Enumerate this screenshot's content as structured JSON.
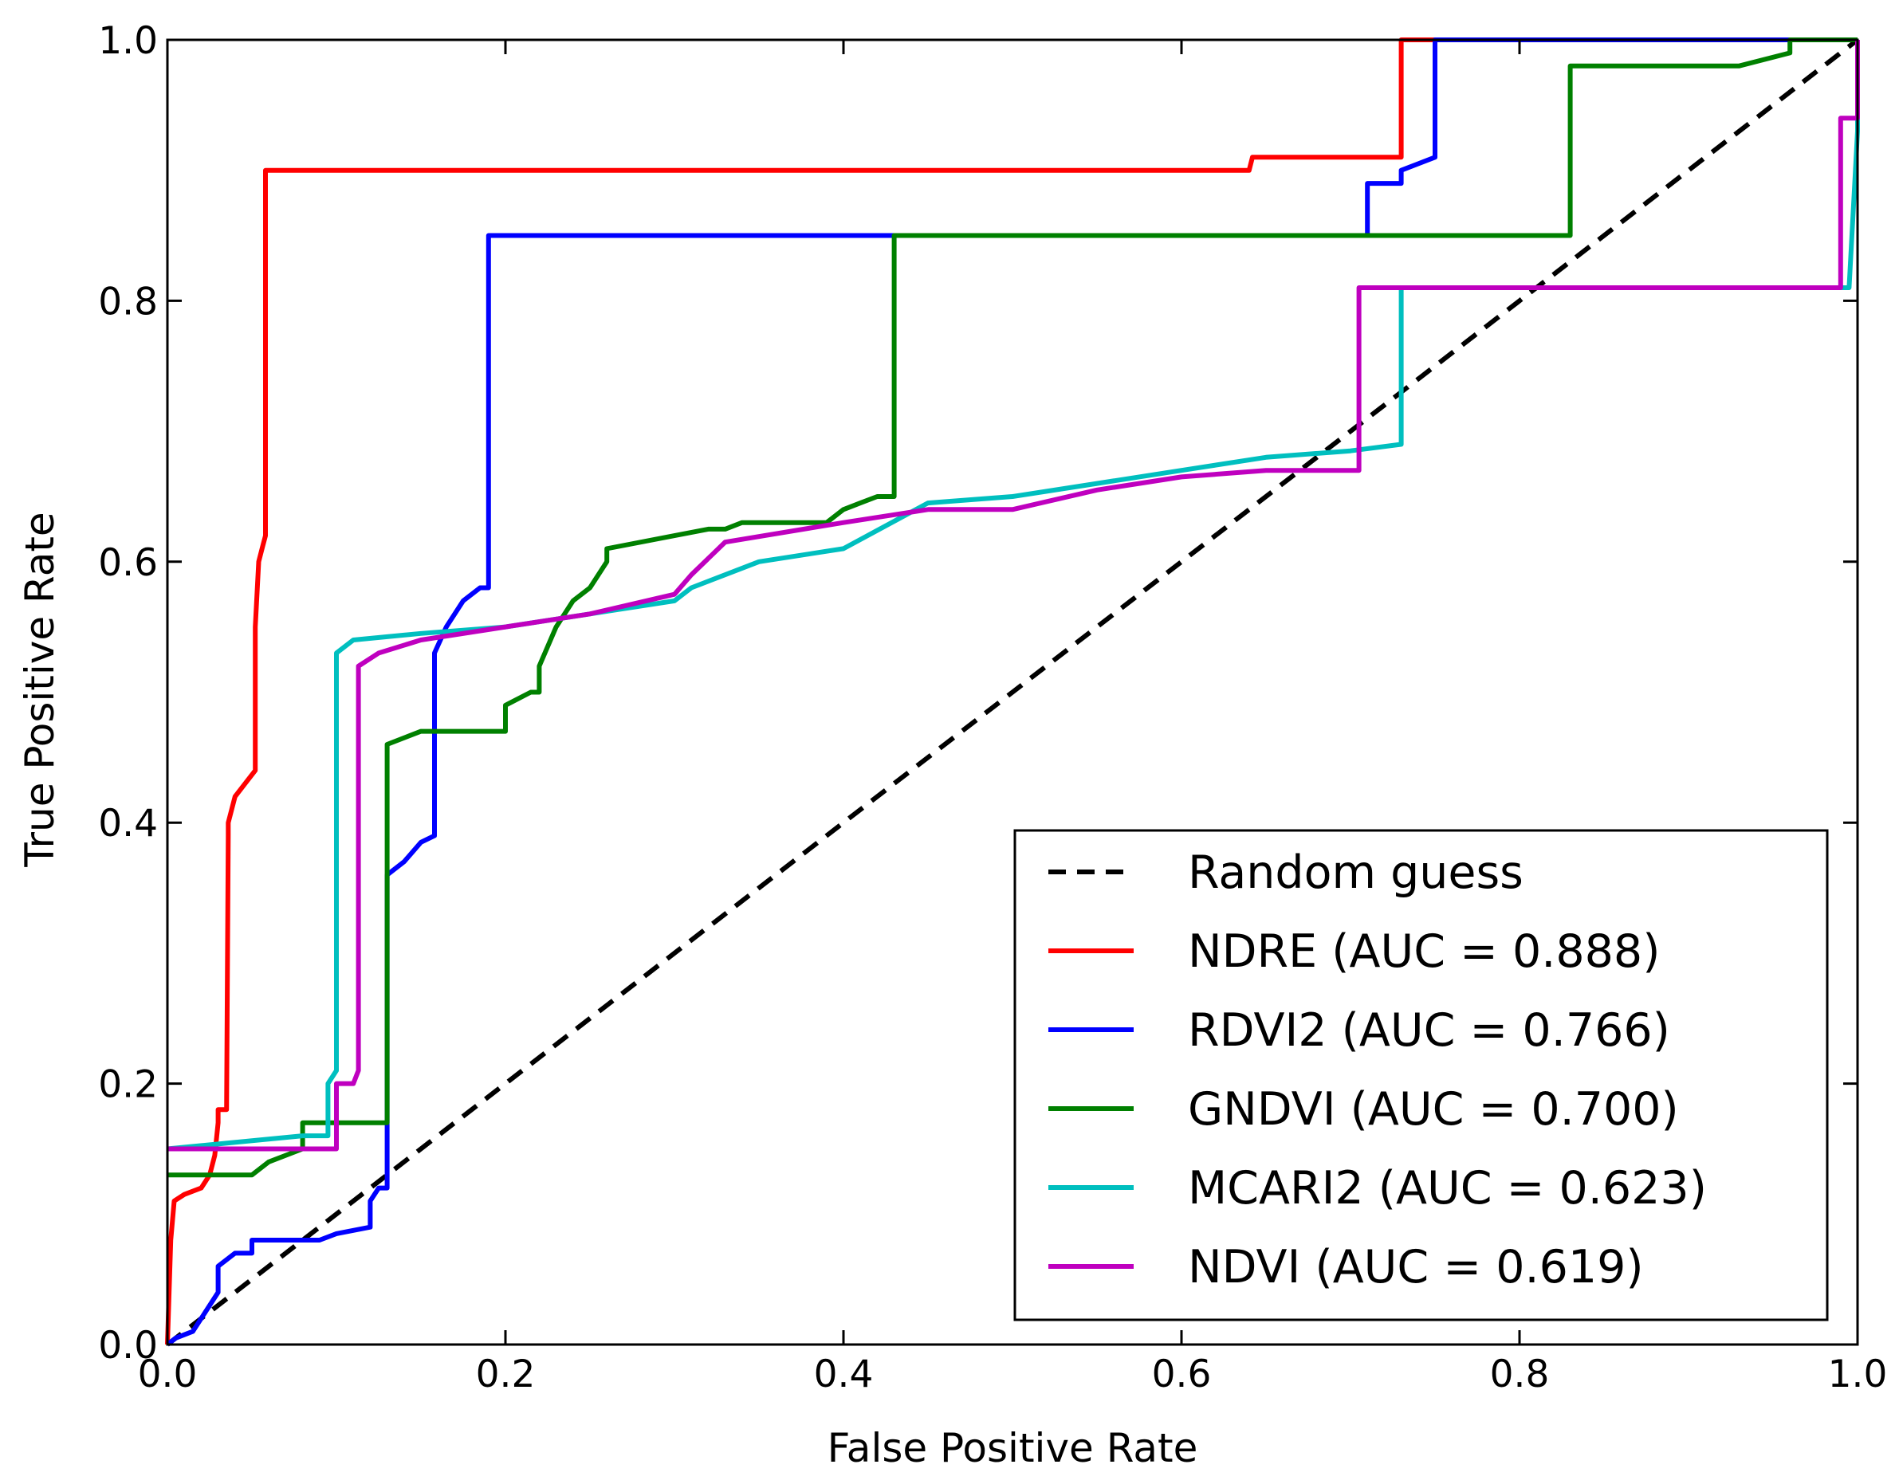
{
  "chart_data": {
    "type": "line",
    "title": "",
    "xlabel": "False Positive Rate",
    "ylabel": "True Positive Rate",
    "xlim": [
      0,
      1
    ],
    "ylim": [
      0,
      1
    ],
    "x_ticks": [
      0.0,
      0.2,
      0.4,
      0.6,
      0.8,
      1.0
    ],
    "y_ticks": [
      0.0,
      0.2,
      0.4,
      0.6,
      0.8,
      1.0
    ],
    "x_tick_labels": [
      "0.0",
      "0.2",
      "0.4",
      "0.6",
      "0.8",
      "1.0"
    ],
    "y_tick_labels": [
      "0.0",
      "0.2",
      "0.4",
      "0.6",
      "0.8",
      "1.0"
    ],
    "grid": false,
    "legend_position": "lower-right",
    "reference_line": {
      "name": "Random guess",
      "color": "#000000",
      "style": "dashed",
      "x": [
        0,
        1
      ],
      "y": [
        0,
        1
      ]
    },
    "series": [
      {
        "name": "NDRE (AUC = 0.888)",
        "color": "#ff0000",
        "x": [
          0,
          0.002,
          0.004,
          0.01,
          0.02,
          0.025,
          0.028,
          0.03,
          0.03,
          0.035,
          0.036,
          0.036,
          0.04,
          0.046,
          0.052,
          0.052,
          0.054,
          0.056,
          0.058,
          0.058,
          0.062,
          0.6,
          0.64,
          0.642,
          0.7,
          0.73,
          0.73,
          0.733,
          0.75,
          1.0
        ],
        "y": [
          0,
          0.08,
          0.11,
          0.115,
          0.12,
          0.13,
          0.145,
          0.17,
          0.18,
          0.18,
          0.39,
          0.4,
          0.42,
          0.43,
          0.44,
          0.55,
          0.6,
          0.61,
          0.62,
          0.9,
          0.9,
          0.9,
          0.9,
          0.91,
          0.91,
          0.91,
          1.0,
          1.0,
          1.0,
          1.0
        ]
      },
      {
        "name": "RDVI2 (AUC = 0.766)",
        "color": "#0000ff",
        "x": [
          0,
          0.005,
          0.015,
          0.02,
          0.025,
          0.03,
          0.03,
          0.04,
          0.05,
          0.05,
          0.06,
          0.09,
          0.1,
          0.12,
          0.12,
          0.125,
          0.13,
          0.13,
          0.14,
          0.15,
          0.158,
          0.158,
          0.165,
          0.175,
          0.185,
          0.19,
          0.19,
          0.71,
          0.71,
          0.73,
          0.73,
          0.75,
          0.75,
          1.0
        ],
        "y": [
          0,
          0.005,
          0.01,
          0.02,
          0.03,
          0.04,
          0.06,
          0.07,
          0.07,
          0.08,
          0.08,
          0.08,
          0.085,
          0.09,
          0.11,
          0.12,
          0.12,
          0.36,
          0.37,
          0.385,
          0.39,
          0.53,
          0.55,
          0.57,
          0.58,
          0.58,
          0.85,
          0.85,
          0.89,
          0.89,
          0.9,
          0.91,
          1.0,
          1.0
        ]
      },
      {
        "name": "GNDVI (AUC = 0.700)",
        "color": "#008000",
        "x": [
          0,
          0.05,
          0.06,
          0.08,
          0.08,
          0.13,
          0.13,
          0.15,
          0.2,
          0.2,
          0.215,
          0.22,
          0.22,
          0.23,
          0.24,
          0.25,
          0.26,
          0.26,
          0.3,
          0.32,
          0.33,
          0.34,
          0.39,
          0.4,
          0.41,
          0.42,
          0.43,
          0.43,
          0.83,
          0.83,
          0.9,
          0.93,
          0.96,
          0.96,
          1.0
        ],
        "y": [
          0.13,
          0.13,
          0.14,
          0.15,
          0.17,
          0.17,
          0.46,
          0.47,
          0.47,
          0.49,
          0.5,
          0.5,
          0.52,
          0.55,
          0.57,
          0.58,
          0.6,
          0.61,
          0.62,
          0.625,
          0.625,
          0.63,
          0.63,
          0.64,
          0.645,
          0.65,
          0.65,
          0.85,
          0.85,
          0.98,
          0.98,
          0.98,
          0.99,
          1.0,
          1.0
        ]
      },
      {
        "name": "MCARI2 (AUC = 0.623)",
        "color": "#00bfbf",
        "x": [
          0,
          0.08,
          0.095,
          0.095,
          0.1,
          0.1,
          0.11,
          0.15,
          0.2,
          0.25,
          0.3,
          0.31,
          0.35,
          0.4,
          0.45,
          0.5,
          0.55,
          0.6,
          0.65,
          0.7,
          0.73,
          0.73,
          0.9,
          0.995,
          1.0,
          1.0
        ],
        "y": [
          0.15,
          0.16,
          0.16,
          0.2,
          0.21,
          0.53,
          0.54,
          0.545,
          0.55,
          0.56,
          0.57,
          0.58,
          0.6,
          0.61,
          0.645,
          0.65,
          0.66,
          0.67,
          0.68,
          0.685,
          0.69,
          0.81,
          0.81,
          0.81,
          0.93,
          1.0
        ]
      },
      {
        "name": "NDVI (AUC = 0.619)",
        "color": "#bf00bf",
        "x": [
          0,
          0.1,
          0.1,
          0.11,
          0.113,
          0.113,
          0.125,
          0.15,
          0.2,
          0.25,
          0.3,
          0.31,
          0.33,
          0.4,
          0.45,
          0.5,
          0.55,
          0.6,
          0.65,
          0.7,
          0.705,
          0.705,
          0.9,
          0.99,
          0.99,
          1.0,
          1.0
        ],
        "y": [
          0.15,
          0.15,
          0.2,
          0.2,
          0.21,
          0.52,
          0.53,
          0.54,
          0.55,
          0.56,
          0.575,
          0.59,
          0.615,
          0.63,
          0.64,
          0.64,
          0.655,
          0.665,
          0.67,
          0.67,
          0.67,
          0.81,
          0.81,
          0.81,
          0.94,
          0.94,
          1.0
        ]
      }
    ]
  }
}
